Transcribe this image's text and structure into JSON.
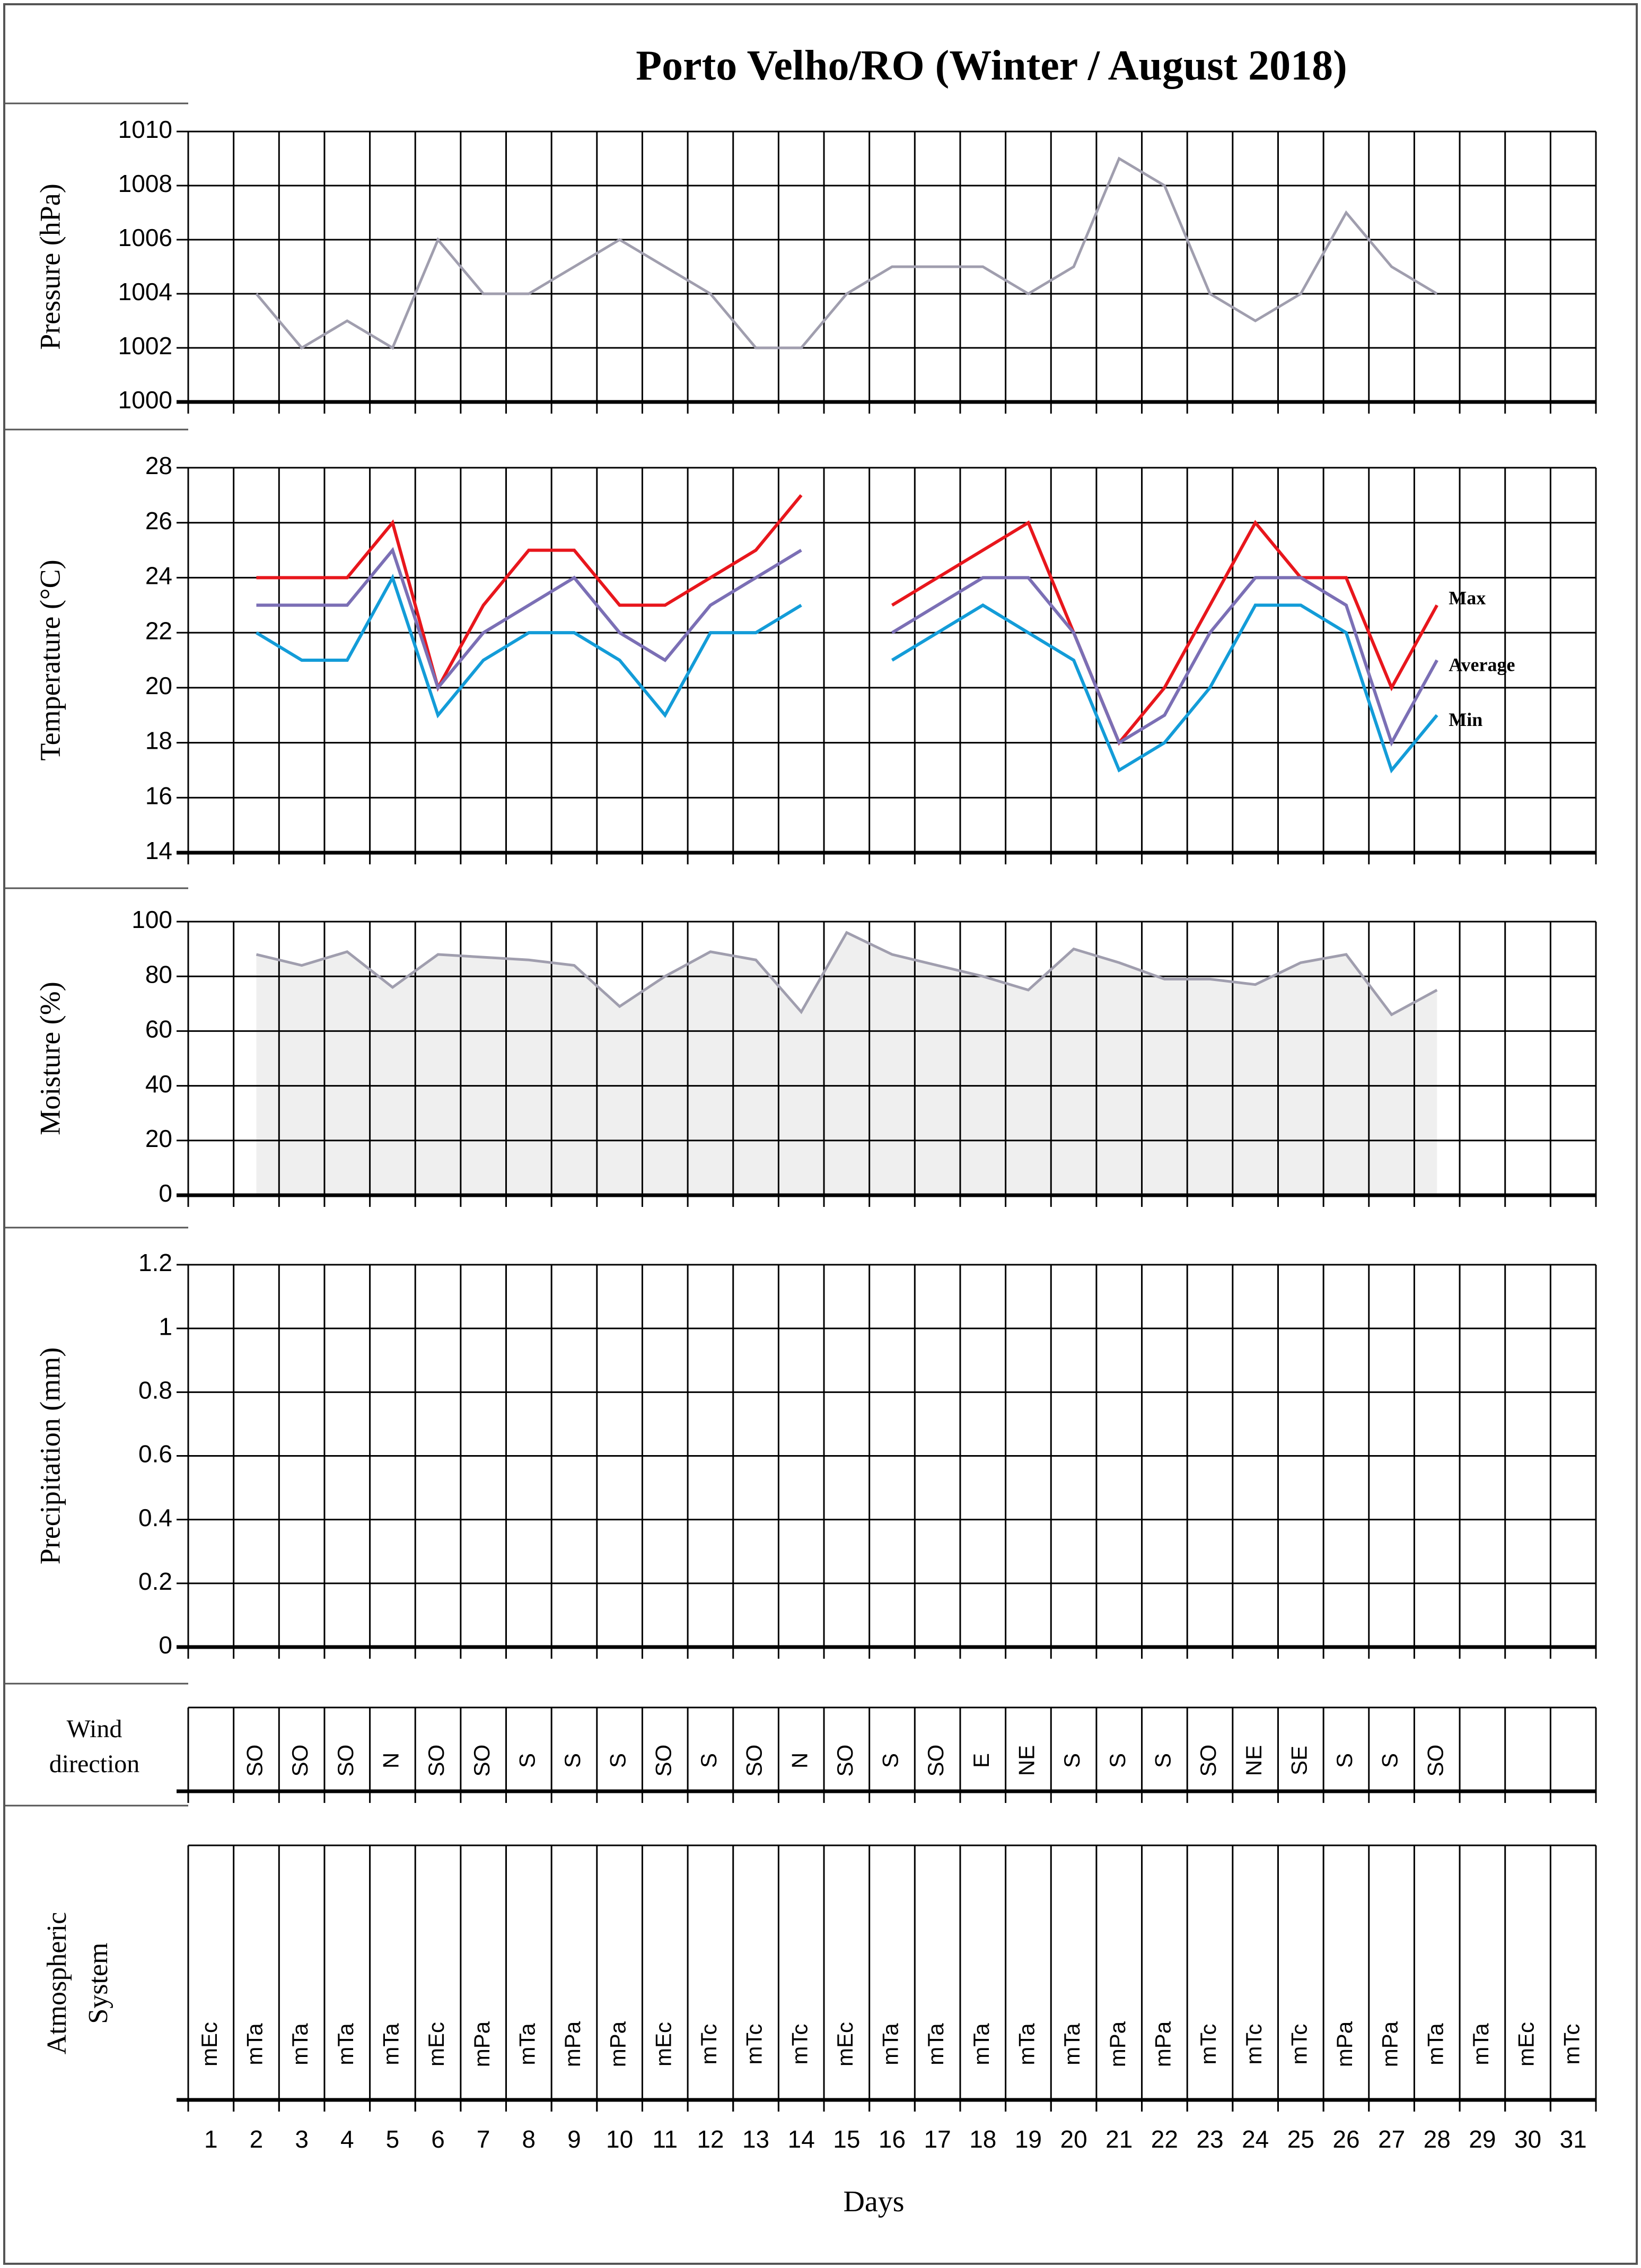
{
  "title": "Porto Velho/RO (Winter / August 2018)",
  "x_label": "Days",
  "days": [
    "1",
    "2",
    "3",
    "4",
    "5",
    "6",
    "7",
    "8",
    "9",
    "10",
    "11",
    "12",
    "13",
    "14",
    "15",
    "16",
    "17",
    "18",
    "19",
    "20",
    "21",
    "22",
    "23",
    "24",
    "25",
    "26",
    "27",
    "28",
    "29",
    "30",
    "31"
  ],
  "colors": {
    "pressure": "#a09eae",
    "max": "#e8161c",
    "average": "#7b6fb5",
    "min": "#139cd8",
    "moisture_line": "#a09eae",
    "moisture_fill": "#efefef",
    "grid": "#000000",
    "frame": "#555555"
  },
  "chart_data": [
    {
      "type": "line",
      "name": "pressure",
      "ylabel": "Pressure  (hPa)",
      "ylim": [
        1000,
        1010
      ],
      "yticks": [
        1000,
        1002,
        1004,
        1006,
        1008,
        1010
      ],
      "ytick_labels": [
        "1000",
        "1002",
        "1004",
        "1006",
        "1008",
        "1010"
      ],
      "series": [
        {
          "name": "Pressure",
          "color_key": "pressure",
          "values": [
            null,
            1004,
            1002,
            1003,
            1002,
            1006,
            1004,
            1004,
            1005,
            1006,
            1005,
            1004,
            1002,
            1002,
            1004,
            1005,
            1005,
            1005,
            1004,
            1005,
            1009,
            1008,
            1004,
            1003,
            1004,
            1007,
            1005,
            1004,
            null,
            null,
            null
          ]
        }
      ]
    },
    {
      "type": "line",
      "name": "temperature",
      "ylabel": "Temperature  (°C)",
      "ylim": [
        14,
        28
      ],
      "yticks": [
        14,
        16,
        18,
        20,
        22,
        24,
        26,
        28
      ],
      "ytick_labels": [
        "14",
        "16",
        "18",
        "20",
        "22",
        "24",
        "26",
        "28"
      ],
      "series": [
        {
          "name": "Max",
          "color_key": "max",
          "values": [
            null,
            24,
            24,
            24,
            26,
            20,
            23,
            25,
            25,
            23,
            23,
            24,
            25,
            27,
            null,
            23,
            24,
            25,
            26,
            22,
            18,
            20,
            23,
            26,
            24,
            24,
            20,
            23,
            null,
            null,
            null
          ]
        },
        {
          "name": "Average",
          "color_key": "average",
          "values": [
            null,
            23,
            23,
            23,
            25,
            20,
            22,
            23,
            24,
            22,
            21,
            23,
            24,
            25,
            null,
            22,
            23,
            24,
            24,
            22,
            18,
            19,
            22,
            24,
            24,
            23,
            18,
            21,
            null,
            null,
            null
          ]
        },
        {
          "name": "Min",
          "color_key": "min",
          "values": [
            null,
            22,
            21,
            21,
            24,
            19,
            21,
            22,
            22,
            21,
            19,
            22,
            22,
            23,
            null,
            21,
            22,
            23,
            22,
            21,
            17,
            18,
            20,
            23,
            23,
            22,
            17,
            19,
            null,
            null,
            null
          ]
        }
      ],
      "legend": [
        "Max",
        "Average",
        "Min"
      ]
    },
    {
      "type": "area",
      "name": "moisture",
      "ylabel": "Moisture  (%)",
      "ylim": [
        0,
        100
      ],
      "yticks": [
        0,
        20,
        40,
        60,
        80,
        100
      ],
      "ytick_labels": [
        "0",
        "20",
        "40",
        "60",
        "80",
        "100"
      ],
      "series": [
        {
          "name": "Moisture",
          "color_key": "moisture_line",
          "values": [
            null,
            88,
            84,
            89,
            76,
            88,
            87,
            86,
            84,
            69,
            80,
            89,
            86,
            67,
            96,
            88,
            84,
            80,
            75,
            90,
            85,
            79,
            79,
            77,
            85,
            88,
            66,
            75,
            null,
            null,
            null
          ]
        }
      ]
    },
    {
      "type": "bar",
      "name": "precipitation",
      "ylabel": "Precipitation (mm)",
      "ylim": [
        0,
        1.2
      ],
      "yticks": [
        0,
        0.2,
        0.4,
        0.6,
        0.8,
        1,
        1.2
      ],
      "ytick_labels": [
        "0",
        "0.2",
        "0.4",
        "0.6",
        "0.8",
        "1",
        "1.2"
      ],
      "series": [
        {
          "name": "Precipitation",
          "values": [
            0,
            0,
            0,
            0,
            0,
            0,
            0,
            0,
            0,
            0,
            0,
            0,
            0,
            0,
            0,
            0,
            0,
            0,
            0,
            0,
            0,
            0,
            0,
            0,
            0,
            0,
            0,
            0,
            0,
            0,
            0
          ]
        }
      ]
    },
    {
      "type": "table",
      "name": "wind_direction",
      "ylabel": "Wind direction",
      "ylabel_lines": [
        "Wind",
        "direction"
      ],
      "values": [
        "",
        "SO",
        "SO",
        "SO",
        "N",
        "SO",
        "SO",
        "S",
        "S",
        "S",
        "SO",
        "S",
        "SO",
        "N",
        "SO",
        "S",
        "SO",
        "E",
        "NE",
        "S",
        "S",
        "S",
        "SO",
        "NE",
        "SE",
        "S",
        "S",
        "SO",
        "",
        "",
        ""
      ]
    },
    {
      "type": "table",
      "name": "atmospheric_system",
      "ylabel": "Atmospheric System",
      "ylabel_lines": [
        "Atmospheric",
        "System"
      ],
      "values": [
        "mEc",
        "mTa",
        "mTa",
        "mTa",
        "mTa",
        "mEc",
        "mPa",
        "mTa",
        "mPa",
        "mPa",
        "mEc",
        "mTc",
        "mTc",
        "mTc",
        "mEc",
        "mTa",
        "mTa",
        "mTa",
        "mTa",
        "mTa",
        "mPa",
        "mPa",
        "mTc",
        "mTc",
        "mTc",
        "mPa",
        "mPa",
        "mTa",
        "mTa",
        "mEc",
        "mTc"
      ]
    }
  ]
}
